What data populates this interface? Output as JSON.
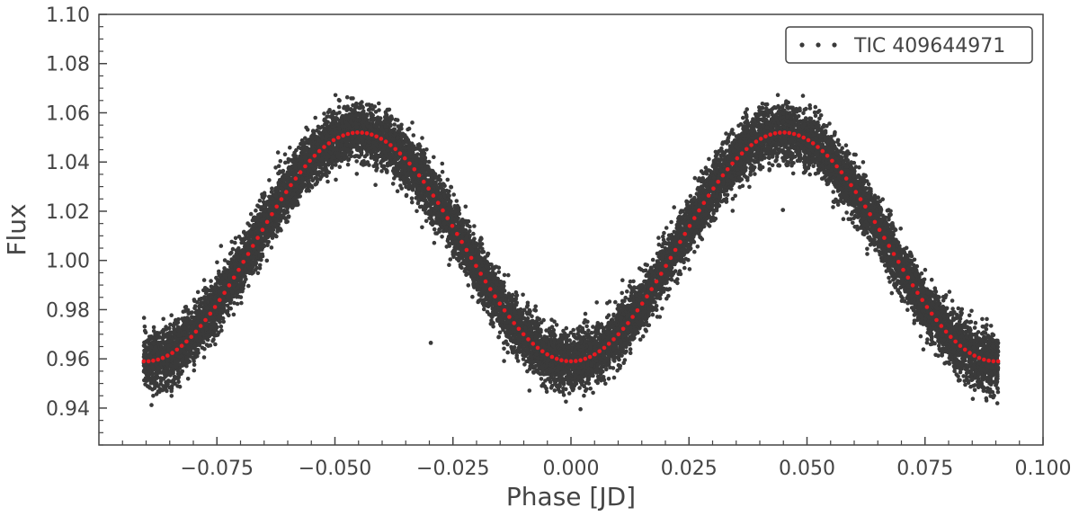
{
  "chart_data": {
    "type": "scatter",
    "title": "",
    "xlabel": "Phase [JD]",
    "ylabel": "Flux",
    "xlim": [
      -0.1,
      0.1
    ],
    "ylim": [
      0.925,
      1.1
    ],
    "phase_range": [
      -0.0905,
      0.0905
    ],
    "x_ticks": [
      -0.075,
      -0.05,
      -0.025,
      0.0,
      0.025,
      0.05,
      0.075,
      0.1
    ],
    "x_tick_labels": [
      "−0.075",
      "−0.050",
      "−0.025",
      "0.000",
      "0.025",
      "0.050",
      "0.075",
      "0.100"
    ],
    "y_ticks": [
      0.94,
      0.96,
      0.98,
      1.0,
      1.02,
      1.04,
      1.06,
      1.08,
      1.1
    ],
    "y_tick_labels": [
      "0.94",
      "0.96",
      "0.98",
      "1.00",
      "1.02",
      "1.04",
      "1.06",
      "1.08",
      "1.10"
    ],
    "grid": false,
    "legend_position": "top-right",
    "colors": {
      "raw": "#3a3a3a",
      "binned": "#e8181f",
      "axis": "#444444"
    },
    "series": [
      {
        "name": "TIC 409644971",
        "kind": "raw flux points",
        "model": "double-hump light curve",
        "baseline": 1.0055,
        "amplitude": 0.0465,
        "period_fraction": 0.09,
        "scatter_sigma": 0.0055,
        "n_points": 16000,
        "outliers": [
          {
            "x": -0.0297,
            "y": 0.9665
          },
          {
            "x": 0.0449,
            "y": 1.0205
          }
        ]
      },
      {
        "name": "binned mean",
        "kind": "binned",
        "x": [
          -0.09,
          -0.08,
          -0.07,
          -0.06,
          -0.05,
          -0.045,
          -0.04,
          -0.03,
          -0.02,
          -0.01,
          0.0,
          0.01,
          0.02,
          0.03,
          0.04,
          0.045,
          0.05,
          0.06,
          0.07,
          0.08,
          0.09
        ],
        "y": [
          0.959,
          0.964,
          0.982,
          1.017,
          1.046,
          1.052,
          1.046,
          1.017,
          0.982,
          0.964,
          0.959,
          0.964,
          0.982,
          1.017,
          1.046,
          1.052,
          1.046,
          1.017,
          0.982,
          0.964,
          0.959
        ],
        "n_bins": 181
      }
    ]
  }
}
